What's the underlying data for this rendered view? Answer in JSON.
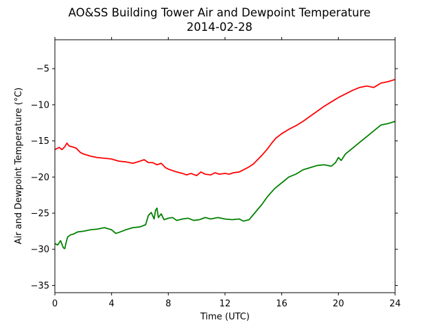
{
  "chart_data": {
    "type": "line",
    "title": "AO&SS Building Tower Air and Dewpoint Temperature",
    "subtitle": "2014-02-28",
    "xlabel": "Time (UTC)",
    "ylabel": "Air and Dewpoint Temperature (°C)",
    "xlim": [
      0,
      24
    ],
    "ylim": [
      -36,
      -1
    ],
    "xticks": [
      0,
      4,
      8,
      12,
      16,
      20,
      24
    ],
    "yticks": [
      -35,
      -30,
      -25,
      -20,
      -15,
      -10,
      -5
    ],
    "grid": false,
    "colors": {
      "air": "#ff0000",
      "dewpoint": "#008000"
    },
    "series": [
      {
        "key": "air",
        "x": [
          0.0,
          0.3,
          0.5,
          0.7,
          0.85,
          1.0,
          1.2,
          1.5,
          1.8,
          2.0,
          2.5,
          3.0,
          3.5,
          4.0,
          4.5,
          5.0,
          5.5,
          6.0,
          6.3,
          6.6,
          6.9,
          7.2,
          7.5,
          7.8,
          8.0,
          8.3,
          8.6,
          9.0,
          9.3,
          9.6,
          10.0,
          10.3,
          10.6,
          11.0,
          11.3,
          11.6,
          12.0,
          12.3,
          12.6,
          13.0,
          13.3,
          13.6,
          14.0,
          14.3,
          14.6,
          15.0,
          15.3,
          15.6,
          16.0,
          16.5,
          17.0,
          17.5,
          18.0,
          18.5,
          19.0,
          19.5,
          20.0,
          20.5,
          21.0,
          21.5,
          22.0,
          22.5,
          23.0,
          23.5,
          24.0
        ],
        "values": [
          -16.2,
          -15.9,
          -16.2,
          -15.8,
          -15.3,
          -15.7,
          -15.8,
          -16.0,
          -16.6,
          -16.8,
          -17.1,
          -17.3,
          -17.4,
          -17.5,
          -17.8,
          -17.9,
          -18.1,
          -17.8,
          -17.6,
          -18.0,
          -18.0,
          -18.3,
          -18.1,
          -18.7,
          -18.9,
          -19.1,
          -19.3,
          -19.5,
          -19.7,
          -19.5,
          -19.8,
          -19.3,
          -19.6,
          -19.7,
          -19.4,
          -19.6,
          -19.5,
          -19.6,
          -19.4,
          -19.3,
          -19.0,
          -18.7,
          -18.2,
          -17.6,
          -17.0,
          -16.1,
          -15.3,
          -14.6,
          -14.0,
          -13.4,
          -12.9,
          -12.3,
          -11.6,
          -10.9,
          -10.2,
          -9.6,
          -9.0,
          -8.5,
          -8.0,
          -7.6,
          -7.4,
          -7.6,
          -7.0,
          -6.8,
          -6.5
        ]
      },
      {
        "key": "dewpoint",
        "x": [
          0.0,
          0.2,
          0.4,
          0.6,
          0.7,
          0.8,
          0.9,
          1.1,
          1.3,
          1.6,
          2.0,
          2.5,
          3.0,
          3.5,
          4.0,
          4.3,
          4.6,
          5.0,
          5.5,
          6.0,
          6.4,
          6.6,
          6.8,
          7.0,
          7.1,
          7.2,
          7.3,
          7.5,
          7.7,
          8.0,
          8.3,
          8.6,
          9.0,
          9.4,
          9.8,
          10.2,
          10.6,
          11.0,
          11.5,
          12.0,
          12.5,
          13.0,
          13.3,
          13.7,
          14.0,
          14.3,
          14.6,
          15.0,
          15.5,
          16.0,
          16.5,
          17.0,
          17.5,
          18.0,
          18.5,
          19.0,
          19.5,
          19.8,
          20.0,
          20.2,
          20.5,
          21.0,
          21.5,
          22.0,
          22.5,
          23.0,
          23.5,
          24.0
        ],
        "values": [
          -29.2,
          -29.4,
          -28.8,
          -29.8,
          -29.9,
          -29.0,
          -28.3,
          -28.0,
          -27.9,
          -27.6,
          -27.5,
          -27.3,
          -27.2,
          -27.0,
          -27.3,
          -27.8,
          -27.6,
          -27.3,
          -27.0,
          -26.9,
          -26.6,
          -25.3,
          -24.9,
          -25.8,
          -24.6,
          -24.3,
          -25.6,
          -25.1,
          -25.9,
          -25.7,
          -25.6,
          -26.0,
          -25.8,
          -25.7,
          -26.0,
          -25.9,
          -25.6,
          -25.8,
          -25.6,
          -25.8,
          -25.9,
          -25.8,
          -26.1,
          -25.9,
          -25.2,
          -24.5,
          -23.8,
          -22.7,
          -21.6,
          -20.8,
          -20.0,
          -19.6,
          -19.0,
          -18.7,
          -18.4,
          -18.3,
          -18.5,
          -18.0,
          -17.3,
          -17.7,
          -16.8,
          -16.0,
          -15.2,
          -14.4,
          -13.6,
          -12.8,
          -12.6,
          -12.3
        ]
      }
    ]
  }
}
